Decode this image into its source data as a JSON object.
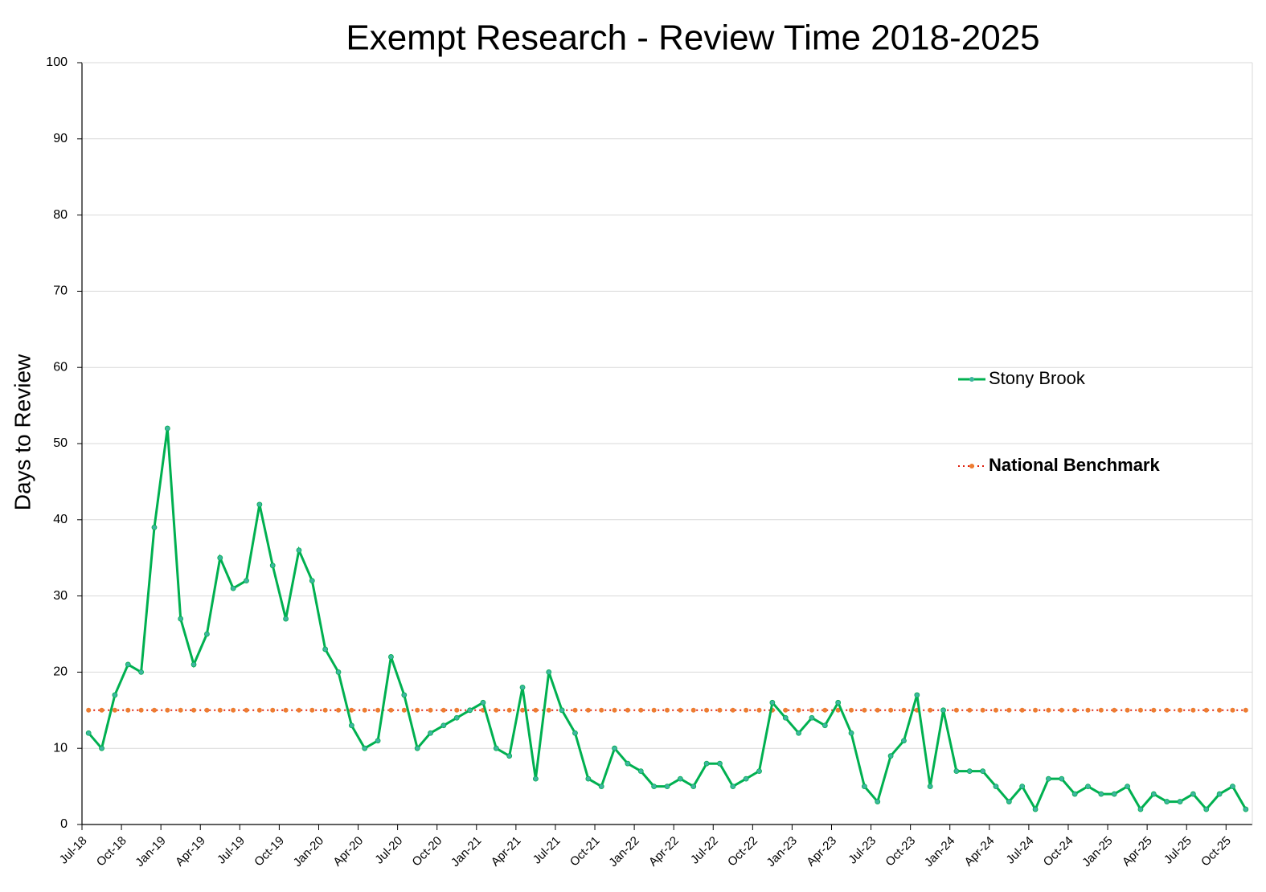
{
  "chart_data": {
    "type": "line",
    "title": "Exempt Research - Review Time 2018-2025",
    "y_label": "Days to Review",
    "categories": [
      "Jul-18",
      null,
      null,
      "Oct-18",
      null,
      null,
      "Jan-19",
      null,
      null,
      "Apr-19",
      null,
      null,
      "Jul-19",
      null,
      null,
      "Oct-19",
      null,
      null,
      "Jan-20",
      null,
      null,
      "Apr-20",
      null,
      null,
      "Jul-20",
      null,
      null,
      "Oct-20",
      null,
      null,
      "Jan-21",
      null,
      null,
      "Apr-21",
      null,
      null,
      "Jul-21",
      null,
      null,
      "Oct-21",
      null,
      null,
      "Jan-22",
      null,
      null,
      "Apr-22",
      null,
      null,
      "Jul-22",
      null,
      null,
      "Oct-22",
      null,
      null,
      "Jan-23",
      null,
      null,
      "Apr-23",
      null,
      null,
      "Jul-23",
      null,
      null,
      "Oct-23",
      null,
      null,
      "Jan-24",
      null,
      null,
      "Apr-24",
      null,
      null,
      "Jul-24",
      null,
      null,
      "Oct-24",
      null,
      null,
      "Jan-25",
      null,
      null,
      "Apr-25",
      null,
      null,
      "Jul-25",
      null,
      null,
      "Oct-25",
      null
    ],
    "series": [
      {
        "name": "Stony Brook",
        "color": "#00b050",
        "marker_color": "#3fb5a0",
        "dash": "solid",
        "values": [
          12,
          10,
          17,
          21,
          20,
          39,
          52,
          27,
          21,
          25,
          35,
          31,
          32,
          42,
          34,
          27,
          36,
          32,
          23,
          20,
          13,
          10,
          11,
          22,
          17,
          10,
          12,
          13,
          14,
          15,
          16,
          10,
          9,
          18,
          6,
          20,
          15,
          12,
          6,
          5,
          10,
          8,
          7,
          5,
          5,
          6,
          5,
          8,
          8,
          5,
          6,
          7,
          16,
          14,
          12,
          14,
          13,
          16,
          12,
          5,
          3,
          9,
          11,
          17,
          5,
          15,
          7,
          7,
          7,
          5,
          3,
          5,
          2,
          6,
          6,
          4,
          5,
          4,
          4,
          5,
          2,
          4,
          3,
          3,
          4,
          2,
          4,
          5,
          2
        ]
      },
      {
        "name": "National Benchmark",
        "color": "#e0200f",
        "marker_color": "#ed7d31",
        "dash": "dotted",
        "values": [
          15,
          15,
          15,
          15,
          15,
          15,
          15,
          15,
          15,
          15,
          15,
          15,
          15,
          15,
          15,
          15,
          15,
          15,
          15,
          15,
          15,
          15,
          15,
          15,
          15,
          15,
          15,
          15,
          15,
          15,
          15,
          15,
          15,
          15,
          15,
          15,
          15,
          15,
          15,
          15,
          15,
          15,
          15,
          15,
          15,
          15,
          15,
          15,
          15,
          15,
          15,
          15,
          15,
          15,
          15,
          15,
          15,
          15,
          15,
          15,
          15,
          15,
          15,
          15,
          15,
          15,
          15,
          15,
          15,
          15,
          15,
          15,
          15,
          15,
          15,
          15,
          15,
          15,
          15,
          15,
          15,
          15,
          15,
          15,
          15,
          15,
          15,
          15,
          15
        ]
      }
    ],
    "ylim": [
      0,
      100
    ],
    "yticks": [
      0,
      10,
      20,
      30,
      40,
      50,
      60,
      70,
      80,
      90,
      100
    ],
    "grid": true,
    "legend_position": "right"
  }
}
